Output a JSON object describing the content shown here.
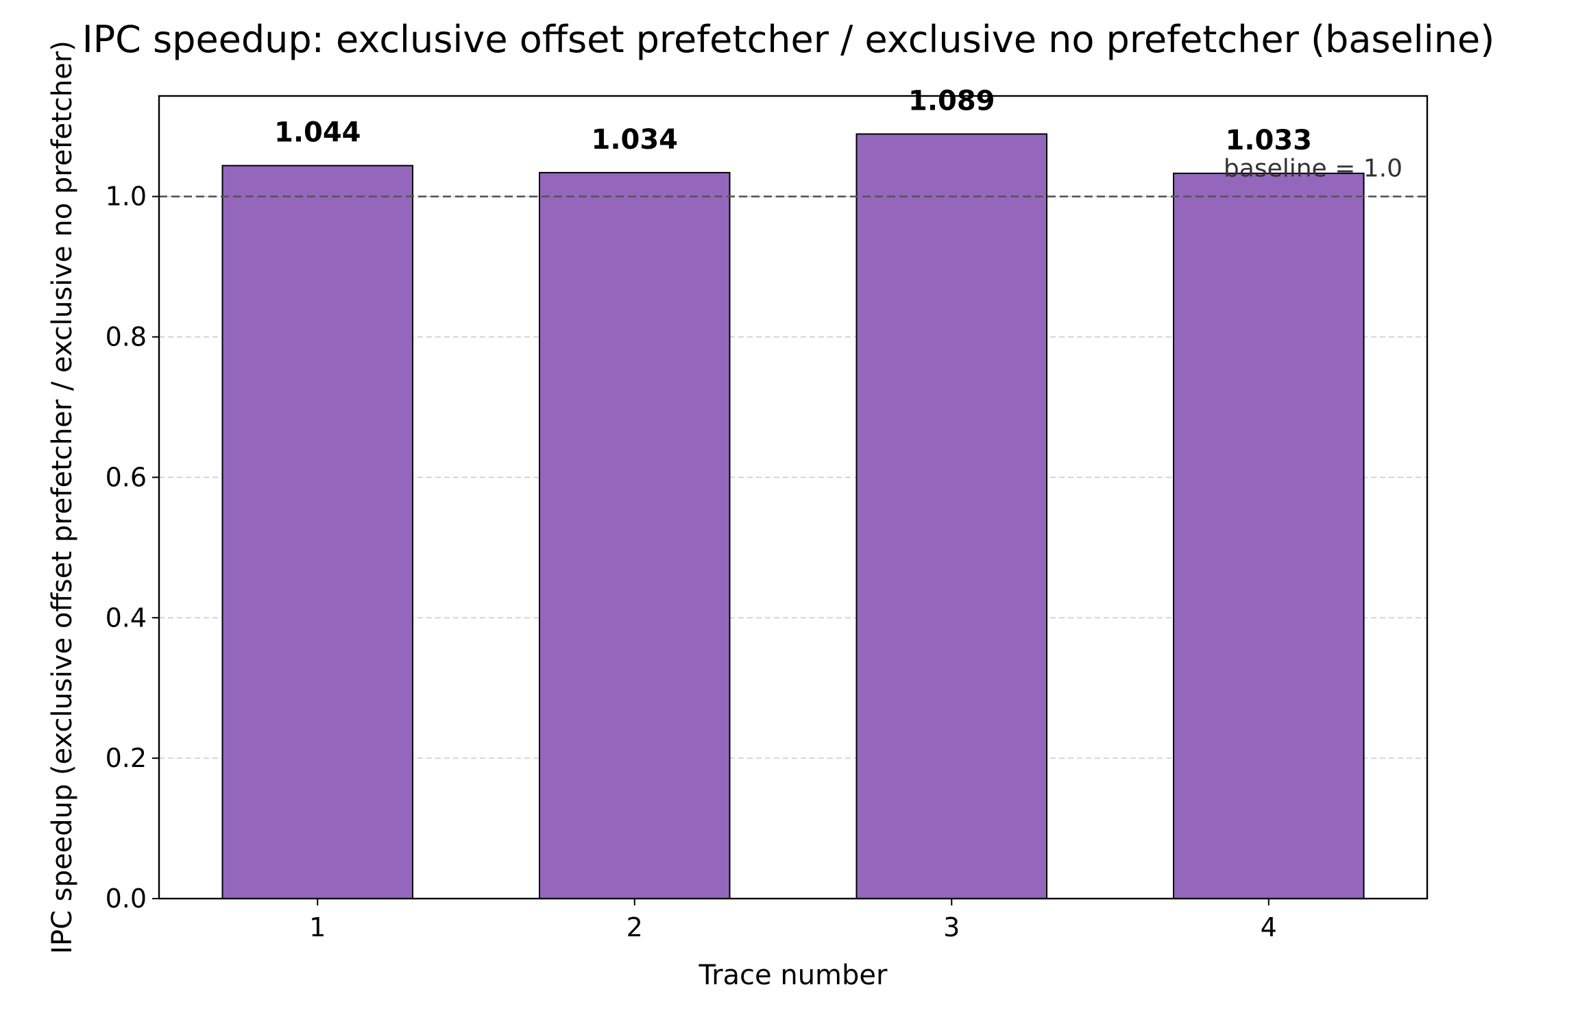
{
  "chart_data": {
    "type": "bar",
    "title": "IPC speedup: exclusive offset prefetcher / exclusive no prefetcher (baseline)",
    "xlabel": "Trace number",
    "ylabel": "IPC speedup (exclusive offset prefetcher / exclusive no prefetcher)",
    "categories": [
      "1",
      "2",
      "3",
      "4"
    ],
    "values": [
      1.044,
      1.034,
      1.089,
      1.033
    ],
    "value_labels": [
      "1.044",
      "1.034",
      "1.089",
      "1.033"
    ],
    "ylim": [
      0,
      1.1432
    ],
    "yticks": [
      0.0,
      0.2,
      0.4,
      0.6,
      0.8,
      1.0
    ],
    "ytick_labels": [
      "0.0",
      "0.2",
      "0.4",
      "0.6",
      "0.8",
      "1.0"
    ],
    "grid": "y-dashed",
    "baseline": {
      "value": 1.0,
      "label": "baseline = 1.0"
    },
    "colors": {
      "bar_fill": "#9467bd",
      "bar_edge": "#000000",
      "baseline_line": "#555555",
      "grid": "#cccccc"
    }
  }
}
